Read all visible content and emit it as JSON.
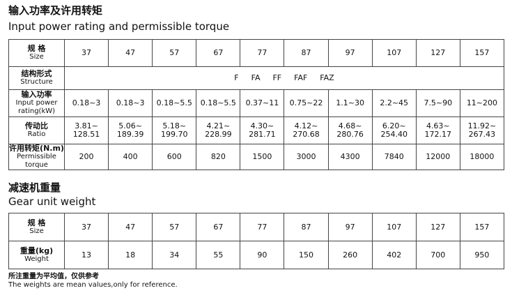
{
  "section1": {
    "title_cn": "输入功率及许用转矩",
    "title_en": "Input power rating and permissible torque",
    "table": {
      "size": {
        "label_cn": "规 格",
        "label_en": [
          "Size"
        ],
        "cells": [
          "37",
          "47",
          "57",
          "67",
          "77",
          "87",
          "97",
          "107",
          "127",
          "157"
        ]
      },
      "structure": {
        "label_cn": "结构形式",
        "label_en": [
          "Structure"
        ],
        "items": [
          "F",
          "FA",
          "FF",
          "FAF",
          "FAZ"
        ]
      },
      "power": {
        "label_cn": "输入功率",
        "label_en": [
          "Input power",
          "rating(kW)"
        ],
        "cells": [
          "0.18~3",
          "0.18~3",
          "0.18~5.5",
          "0.18~5.5",
          "0.37~11",
          "0.75~22",
          "1.1~30",
          "2.2~45",
          "7.5~90",
          "11~200"
        ]
      },
      "ratio": {
        "label_cn": "传动比",
        "label_en": [
          "Ratio"
        ],
        "cells": [
          [
            "3.81~",
            "128.51"
          ],
          [
            "5.06~",
            "189.39"
          ],
          [
            "5.18~",
            "199.70"
          ],
          [
            "4.21~",
            "228.99"
          ],
          [
            "4.30~",
            "281.71"
          ],
          [
            "4.12~",
            "270.68"
          ],
          [
            "4.68~",
            "280.76"
          ],
          [
            "6.20~",
            "254.40"
          ],
          [
            "4.63~",
            "172.17"
          ],
          [
            "11.92~",
            "267.43"
          ]
        ]
      },
      "torque": {
        "label_cn": "许用转矩(N.m)",
        "label_en": [
          "Permissible torque"
        ],
        "cells": [
          "200",
          "400",
          "600",
          "820",
          "1500",
          "3000",
          "4300",
          "7840",
          "12000",
          "18000"
        ]
      }
    }
  },
  "section2": {
    "title_cn": "减速机重量",
    "title_en": "Gear unit weight",
    "table": {
      "size": {
        "label_cn": "规 格",
        "label_en": [
          "Size"
        ],
        "cells": [
          "37",
          "47",
          "57",
          "67",
          "77",
          "87",
          "97",
          "107",
          "127",
          "157"
        ]
      },
      "weight": {
        "label_cn": "重量(kg)",
        "label_en": [
          "Weight"
        ],
        "cells": [
          "13",
          "18",
          "34",
          "55",
          "90",
          "150",
          "260",
          "402",
          "700",
          "950"
        ]
      }
    }
  },
  "notes": {
    "cn": "所注重量为平均值，仅供参考",
    "en": "The weights are mean values,only for reference."
  }
}
